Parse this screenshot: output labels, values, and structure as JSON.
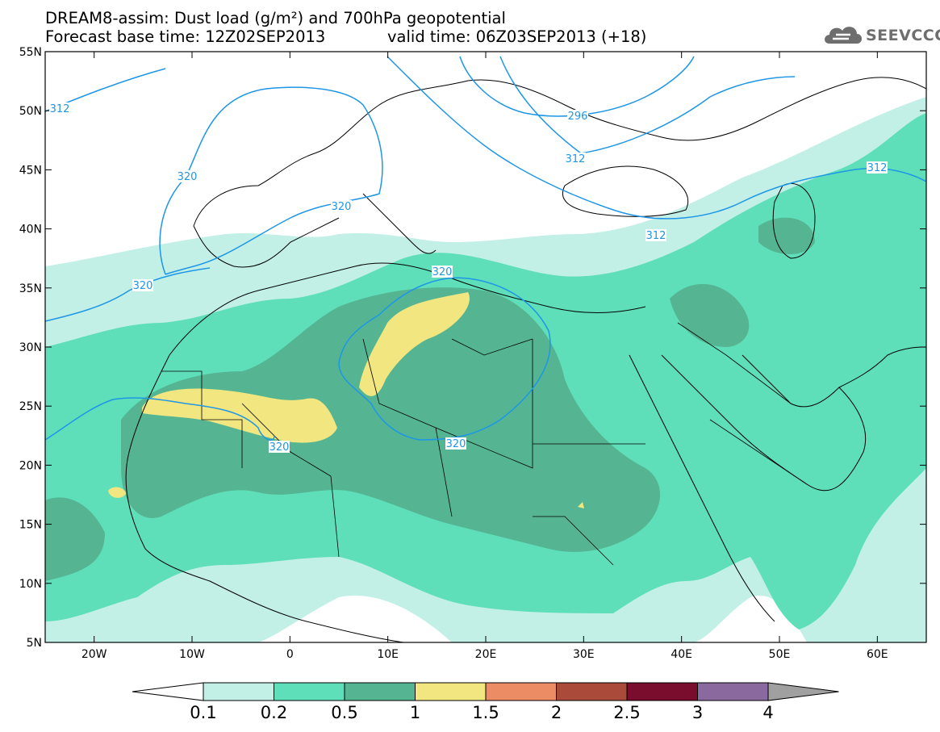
{
  "header": {
    "title_line1": "DREAM8-assim: Dust load (g/m²) and 700hPa geopotential",
    "title_line2": "Forecast base time: 12Z02SEP2013",
    "valid_time": "valid time: 06Z03SEP2013 (+18)"
  },
  "logo": {
    "text": "SEEVCCC",
    "icon": "cloud-logo-icon"
  },
  "axes": {
    "lat_labels": [
      "55N",
      "50N",
      "45N",
      "40N",
      "35N",
      "30N",
      "25N",
      "20N",
      "15N",
      "10N",
      "5N"
    ],
    "lat_values": [
      55,
      50,
      45,
      40,
      35,
      30,
      25,
      20,
      15,
      10,
      5
    ],
    "lon_labels": [
      "20W",
      "10W",
      "0",
      "10E",
      "20E",
      "30E",
      "40E",
      "50E",
      "60E"
    ],
    "lon_values": [
      -20,
      -10,
      0,
      10,
      20,
      30,
      40,
      50,
      60
    ],
    "lon_range": [
      -25,
      65
    ],
    "lat_range": [
      5,
      55
    ]
  },
  "colorbar": {
    "labels": [
      "0.1",
      "0.2",
      "0.5",
      "1",
      "1.5",
      "2",
      "2.5",
      "3",
      "4"
    ],
    "colors": [
      "#c2f0e6",
      "#5fdfb9",
      "#55b592",
      "#f2e680",
      "#ec8c64",
      "#a94a3a",
      "#7a0d2e",
      "#8a6a9e",
      "#a0a0a0"
    ],
    "under_color": "#ffffff"
  },
  "contours": [
    {
      "label": "312",
      "value": 312
    },
    {
      "label": "320",
      "value": 320
    },
    {
      "label": "296",
      "value": 296
    }
  ],
  "colors": {
    "contour": "#1e96e6",
    "coast": "#000000",
    "background": "#ffffff"
  }
}
